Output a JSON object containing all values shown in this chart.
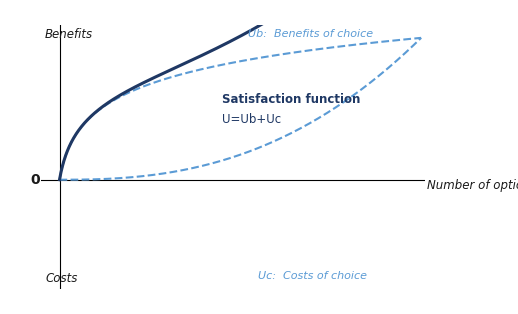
{
  "ylabel_top": "Benefits",
  "ylabel_bottom": "Costs",
  "xlabel": "Number of option",
  "zero_label": "0",
  "annotation_ub": "Ub:  Benefits of choice",
  "annotation_uc": "Uc:  Costs of choice",
  "annotation_sat1": "Satisfaction function",
  "annotation_sat2": "U=Ub+Uc",
  "color_dashed": "#5b9bd5",
  "color_solid": "#1f3864",
  "x_max": 10,
  "background_color": "#ffffff"
}
